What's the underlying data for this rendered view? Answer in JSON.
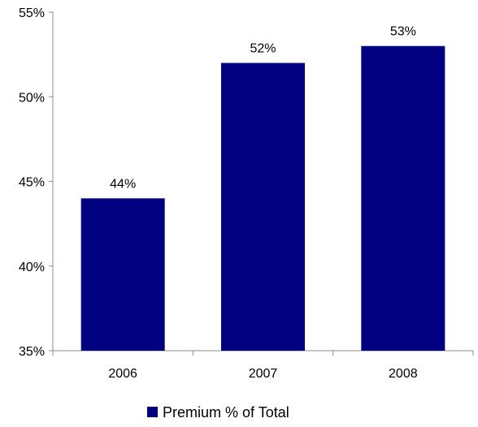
{
  "chart_data": {
    "type": "bar",
    "categories": [
      "2006",
      "2007",
      "2008"
    ],
    "series": [
      {
        "name": "Premium % of Total",
        "values": [
          44,
          52,
          53
        ],
        "data_labels": [
          "44%",
          "52%",
          "53%"
        ],
        "color": "#000080"
      }
    ],
    "ylim": [
      35,
      55
    ],
    "yticks": [
      35,
      40,
      45,
      50,
      55
    ],
    "ytick_labels": [
      "35%",
      "40%",
      "45%",
      "50%",
      "55%"
    ],
    "grid": false,
    "legend_position": "bottom"
  }
}
